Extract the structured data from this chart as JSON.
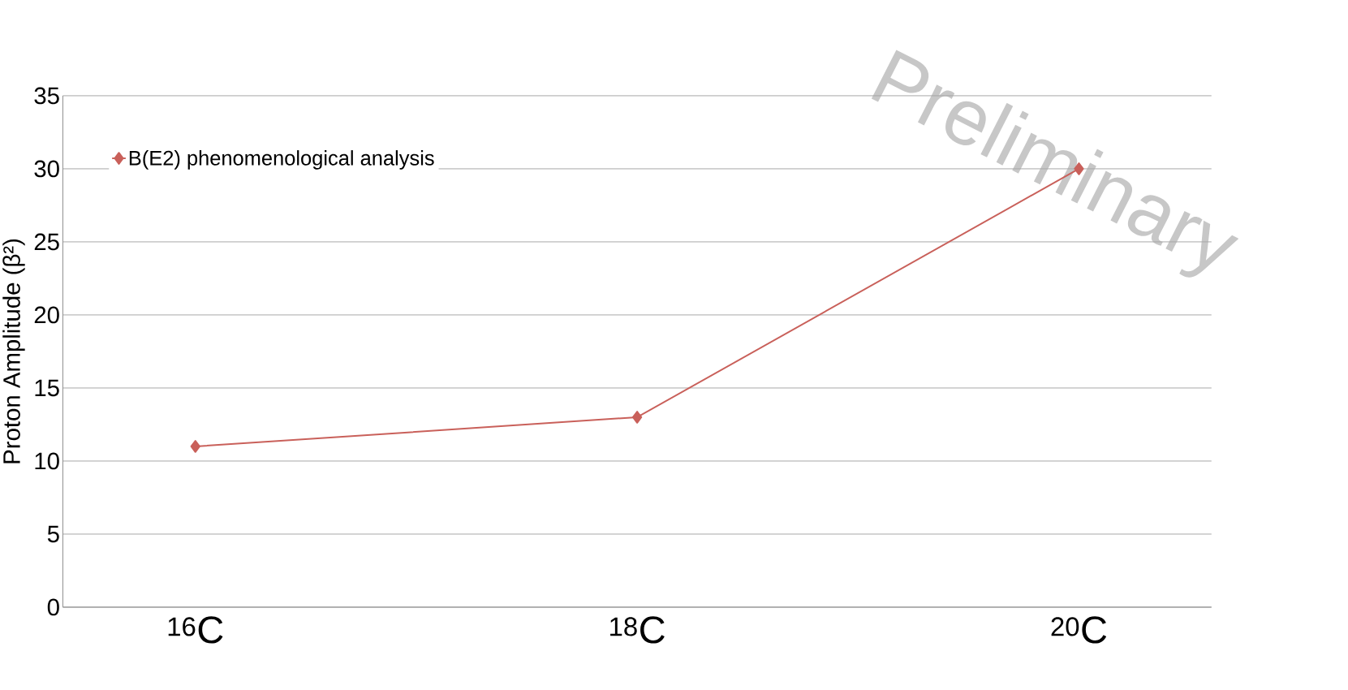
{
  "chart_data": {
    "type": "line",
    "ylabel": "Proton Amplitude (β²)",
    "categories": [
      "$^{16}$C",
      "$^{18}$C",
      "$^{20}$C"
    ],
    "series": [
      {
        "name": "B(E2) phenomenological analysis",
        "color": "#c9605a",
        "values": [
          11,
          13,
          30
        ]
      }
    ],
    "ylim": [
      0,
      35
    ],
    "yticks": [
      0,
      5,
      10,
      15,
      20,
      25,
      30,
      35
    ],
    "grid": "y",
    "legend": "top left",
    "marker": "diamond",
    "line_style": "solid",
    "annotations": [
      "Preliminary"
    ]
  }
}
